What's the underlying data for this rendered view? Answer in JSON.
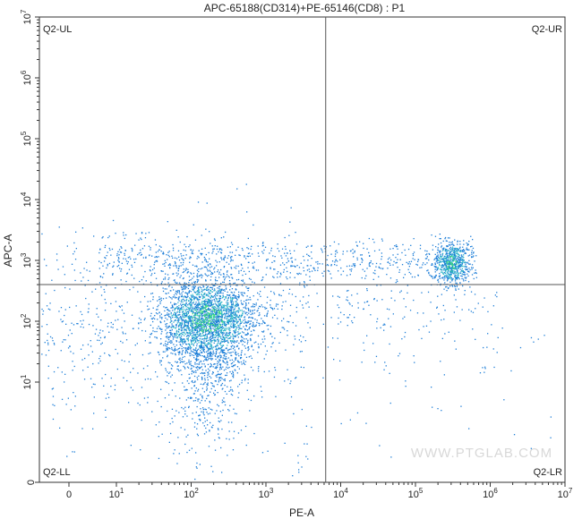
{
  "chart_data": {
    "type": "scatter",
    "title": "APC-65188(CD314)+PE-65146(CD8) : P1",
    "xlabel": "PE-A",
    "ylabel": "APC-A",
    "x_scale": "biexponential",
    "y_scale": "biexponential",
    "x_ticks": [
      {
        "value": 0,
        "label": "0"
      },
      {
        "value": 10,
        "base": "10",
        "exp": "1"
      },
      {
        "value": 100,
        "base": "10",
        "exp": "2"
      },
      {
        "value": 1000,
        "base": "10",
        "exp": "3"
      },
      {
        "value": 10000,
        "base": "10",
        "exp": "4"
      },
      {
        "value": 100000,
        "base": "10",
        "exp": "5"
      },
      {
        "value": 1000000,
        "base": "10",
        "exp": "6"
      },
      {
        "value": 10000000,
        "base": "10",
        "exp": "7"
      }
    ],
    "y_ticks": [
      {
        "value": 0,
        "label": "0"
      },
      {
        "value": 10,
        "base": "10",
        "exp": "1"
      },
      {
        "value": 100,
        "base": "10",
        "exp": "2"
      },
      {
        "value": 1000,
        "base": "10",
        "exp": "3"
      },
      {
        "value": 10000,
        "base": "10",
        "exp": "4"
      },
      {
        "value": 100000,
        "base": "10",
        "exp": "5"
      },
      {
        "value": 1000000,
        "base": "10",
        "exp": "6"
      },
      {
        "value": 10000000,
        "base": "10",
        "exp": "7"
      }
    ],
    "quadrant_gate": {
      "x": 6300,
      "y": 400
    },
    "quadrant_labels": {
      "ul": "Q2-UL",
      "ur": "Q2-UR",
      "ll": "Q2-LL",
      "lr": "Q2-LR"
    },
    "populations": [
      {
        "name": "Q2-LL main cluster",
        "x_center": 160,
        "y_center": 110
      },
      {
        "name": "Q2-UR cluster",
        "x_center": 300000,
        "y_center": 900
      }
    ],
    "watermark": "WWW.PTGLAB.COM",
    "colors": {
      "density_low": "#1f7fd8",
      "density_mid": "#2fb8c8",
      "density_high": "#3fe07a",
      "gate_line": "#555555",
      "axis": "#333333"
    }
  }
}
